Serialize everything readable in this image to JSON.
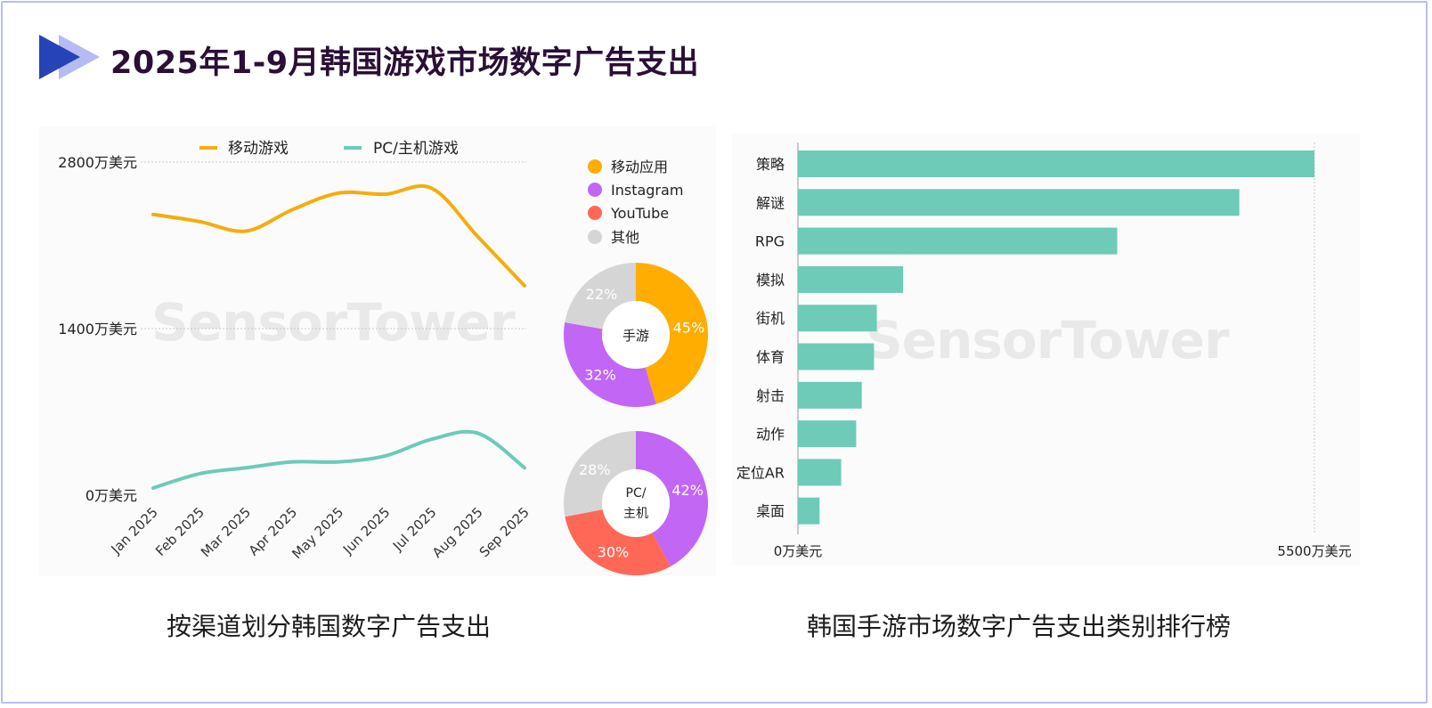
{
  "title": "2025年1-9月韩国游戏市场数字广告支出",
  "watermark": "SensorTower",
  "colors": {
    "mobile": "#f5ad0c",
    "pc": "#6bcbb7",
    "app": "#ffad00",
    "instagram": "#c266f5",
    "youtube": "#ff6757",
    "other": "#d5d5d5",
    "bar": "#6dcbb8",
    "title": "#2a0f36",
    "frame": "#b8bdf0"
  },
  "chart_data": [
    {
      "type": "line",
      "title": "按渠道划分韩国数字广告支出",
      "categories": [
        "Jan 2025",
        "Feb 2025",
        "Mar 2025",
        "Apr 2025",
        "May 2025",
        "Jun 2025",
        "Jul 2025",
        "Aug 2025",
        "Sep 2025"
      ],
      "series": [
        {
          "name": "移动游戏",
          "values": [
            2360,
            2300,
            2220,
            2400,
            2540,
            2530,
            2580,
            2170,
            1760
          ]
        },
        {
          "name": "PC/主机游戏",
          "values": [
            60,
            180,
            230,
            280,
            280,
            330,
            470,
            520,
            230
          ]
        }
      ],
      "yticks": [
        "2800万美元",
        "1400万美元",
        "0万美元"
      ],
      "ylim": [
        0,
        2800
      ],
      "grid": true,
      "legend": "top"
    },
    {
      "type": "pie",
      "title": "手游",
      "labels": [
        "移动应用",
        "Instagram",
        "YouTube",
        "其他"
      ],
      "values": [
        45,
        32,
        0,
        22
      ]
    },
    {
      "type": "pie",
      "title": "PC/主机",
      "labels": [
        "移动应用",
        "Instagram",
        "YouTube",
        "其他"
      ],
      "values": [
        0,
        42,
        30,
        28
      ]
    },
    {
      "type": "bar",
      "title": "韩国手游市场数字广告支出类别排行榜",
      "categories": [
        "策略",
        "解谜",
        "RPG",
        "模拟",
        "街机",
        "体育",
        "射击",
        "动作",
        "定位AR",
        "桌面"
      ],
      "values": [
        5500,
        4700,
        3400,
        1120,
        840,
        810,
        680,
        620,
        460,
        230
      ],
      "xlim": [
        0,
        5500
      ],
      "xticks": [
        "0万美元",
        "5500万美元"
      ]
    }
  ],
  "donut_legend": [
    "移动应用",
    "Instagram",
    "YouTube",
    "其他"
  ]
}
